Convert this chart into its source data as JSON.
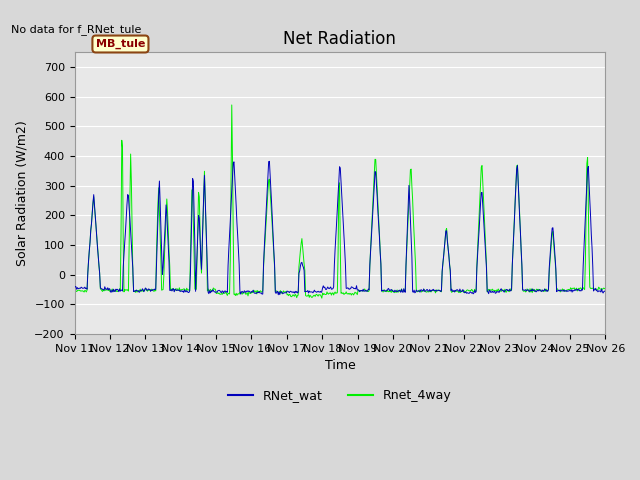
{
  "title": "Net Radiation",
  "xlabel": "Time",
  "ylabel": "Solar Radiation (W/m2)",
  "top_left_text": "No data for f_RNet_tule",
  "legend_box_text": "MB_tule",
  "ylim": [
    -200,
    750
  ],
  "yticks": [
    -200,
    -100,
    0,
    100,
    200,
    300,
    400,
    500,
    600,
    700
  ],
  "xtick_labels": [
    "Nov 11",
    "Nov 12",
    "Nov 13",
    "Nov 14",
    "Nov 15",
    "Nov 16",
    "Nov 17",
    "Nov 18",
    "Nov 19",
    "Nov 20",
    "Nov 21",
    "Nov 22",
    "Nov 23",
    "Nov 24",
    "Nov 25",
    "Nov 26"
  ],
  "blue_color": "#0000bb",
  "green_color": "#00ee00",
  "legend_blue_label": "RNet_wat",
  "legend_green_label": "Rnet_4way",
  "bg_color": "#d8d8d8",
  "plot_bg_color": "#e8e8e8",
  "grid_color": "#ffffff",
  "title_fontsize": 12,
  "label_fontsize": 9,
  "tick_fontsize": 8
}
